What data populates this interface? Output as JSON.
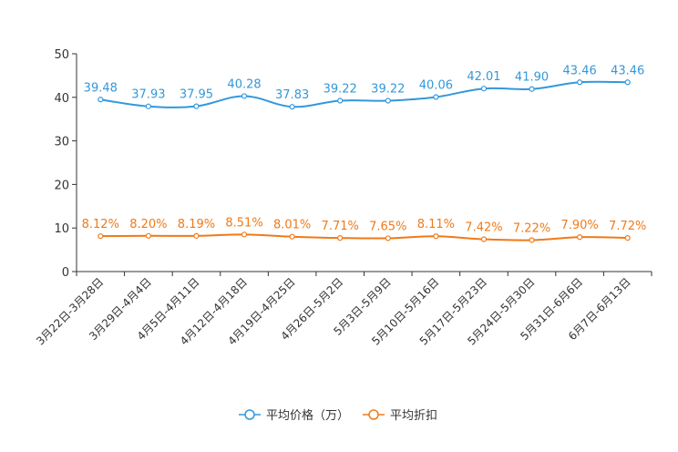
{
  "chart_data": {
    "type": "line",
    "categories": [
      "3月22日-3月28日",
      "3月29日-4月4日",
      "4月5日-4月11日",
      "4月12日-4月18日",
      "4月19日-4月25日",
      "4月26日-5月2日",
      "5月3日-5月9日",
      "5月10日-5月16日",
      "5月17日-5月23日",
      "5月24日-5月30日",
      "5月31日-6月6日",
      "6月7日-6月13日"
    ],
    "ylim": [
      0,
      50
    ],
    "yticks": [
      0,
      10,
      20,
      30,
      40,
      50
    ],
    "series": [
      {
        "name": "平均价格（万）",
        "color": "#3398DB",
        "values": [
          39.48,
          37.93,
          37.95,
          40.28,
          37.83,
          39.22,
          39.22,
          40.06,
          42.01,
          41.9,
          43.46,
          43.46
        ],
        "labels": [
          "39.48",
          "37.93",
          "37.95",
          "40.28",
          "37.83",
          "39.22",
          "39.22",
          "40.06",
          "42.01",
          "41.90",
          "43.46",
          "43.46"
        ]
      },
      {
        "name": "平均折扣",
        "color": "#F07A19",
        "values": [
          8.12,
          8.2,
          8.19,
          8.51,
          8.01,
          7.71,
          7.65,
          8.11,
          7.42,
          7.22,
          7.9,
          7.72
        ],
        "labels": [
          "8.12%",
          "8.20%",
          "8.19%",
          "8.51%",
          "8.01%",
          "7.71%",
          "7.65%",
          "8.11%",
          "7.42%",
          "7.22%",
          "7.90%",
          "7.72%"
        ]
      }
    ],
    "legend": {
      "position": "bottom-center",
      "items": [
        "平均价格（万）",
        "平均折扣"
      ]
    }
  }
}
